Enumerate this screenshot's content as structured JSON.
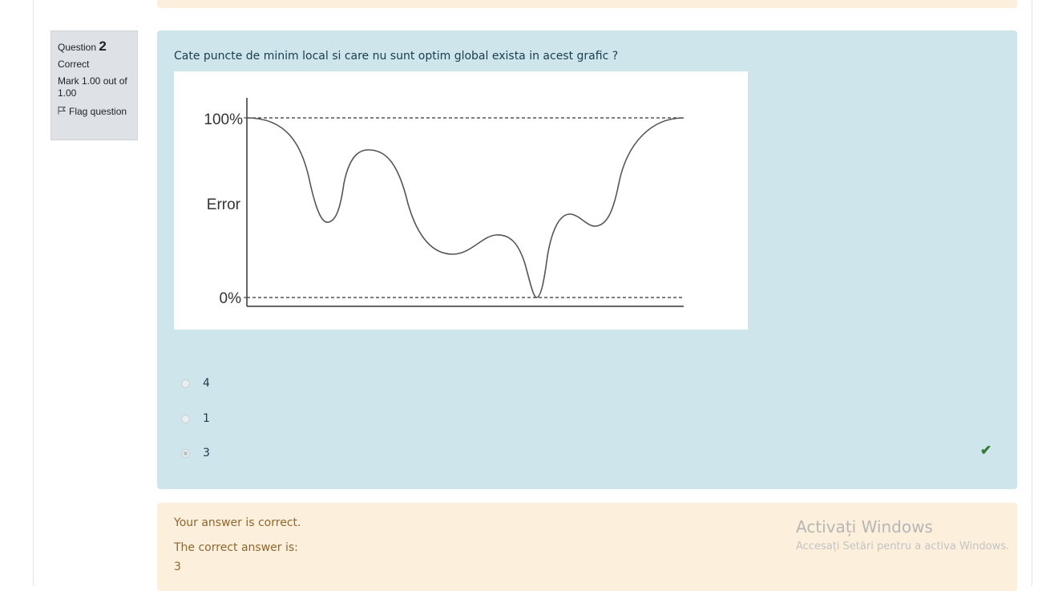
{
  "info": {
    "question_label": "Question",
    "question_number": "2",
    "state": "Correct",
    "grade": "Mark 1.00 out of 1.00",
    "flag_label": "Flag question"
  },
  "question": {
    "text": "Cate puncte de minim local si care nu sunt optim global exista in acest grafic ?",
    "graph": {
      "y_top_label": "100%",
      "y_mid_label": "Error",
      "y_bottom_label": "0%"
    },
    "answers": [
      {
        "label": "4",
        "selected": false
      },
      {
        "label": "1",
        "selected": false
      },
      {
        "label": "3",
        "selected": true
      }
    ],
    "correct_icon": "checkmark-icon"
  },
  "feedback": {
    "result": "Your answer is correct.",
    "correct_answer_label": "The correct answer is:",
    "correct_answer_value": "3"
  },
  "watermark": {
    "title": "Activați Windows",
    "subtitle": "Accesați Setări pentru a activa Windows."
  },
  "colors": {
    "formulation_bg": "#cee6eb",
    "feedback_bg": "#fcefdc",
    "info_bg": "#dee2e6",
    "correct_green": "#357a32"
  }
}
